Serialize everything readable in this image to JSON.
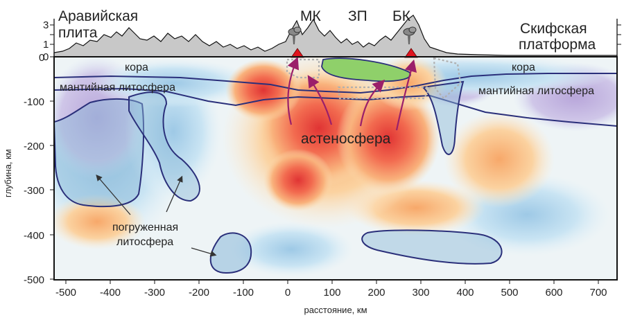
{
  "topo": {
    "left_label": [
      "Аравийская",
      "плита"
    ],
    "right_label": [
      "Скифская",
      "платформа"
    ],
    "tick_labels": [
      "3",
      "1",
      "0"
    ],
    "features": [
      "МК",
      "ЗП",
      "БК"
    ]
  },
  "labels": {
    "crust_left": "кора",
    "crust_right": "кора",
    "litho_left": "мантийная литосфера",
    "litho_right": "мантийная литосфера",
    "asthenosphere": "астеносфера",
    "subducted_line1": "погруженная",
    "subducted_line2": "литосфера"
  },
  "axes": {
    "x_label": "расстояние, км",
    "y_label": "глубина, км",
    "x_ticks": [
      "-500",
      "-400",
      "-300",
      "-200",
      "-100",
      "0",
      "100",
      "200",
      "300",
      "400",
      "500",
      "600",
      "700"
    ],
    "y_ticks": [
      "0",
      "-100",
      "-200",
      "-300",
      "-400",
      "-500"
    ]
  },
  "colors": {
    "outline": "#2a2f7a",
    "arrow": "#9b1f6a",
    "volcano": "#e0141e",
    "topo_fill": "#c8c8c8",
    "terrane": "#8fd06a"
  }
}
